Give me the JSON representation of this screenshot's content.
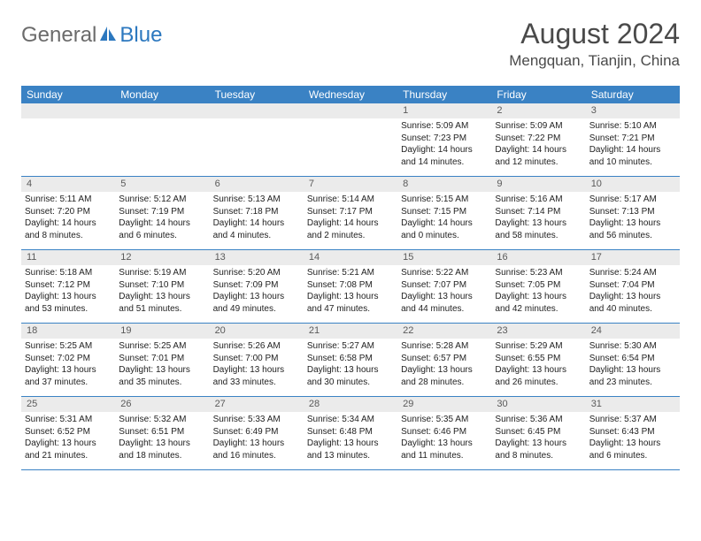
{
  "logo": {
    "general": "General",
    "blue": "Blue"
  },
  "title": "August 2024",
  "location": "Mengquan, Tianjin, China",
  "colors": {
    "header_bg": "#3a82c4",
    "daynum_bg": "#ebebeb",
    "border": "#3a82c4",
    "logo_gray": "#6b6b6b",
    "logo_blue": "#2c78bf",
    "title_gray": "#4a4a4a"
  },
  "dayNames": [
    "Sunday",
    "Monday",
    "Tuesday",
    "Wednesday",
    "Thursday",
    "Friday",
    "Saturday"
  ],
  "layout": {
    "weeks": 5,
    "firstDayOffset": 4,
    "daysInMonth": 31,
    "cell_fontsize": 10,
    "header_fontsize": 12
  },
  "days": {
    "1": {
      "sunrise": "5:09 AM",
      "sunset": "7:23 PM",
      "daylight": "14 hours and 14 minutes."
    },
    "2": {
      "sunrise": "5:09 AM",
      "sunset": "7:22 PM",
      "daylight": "14 hours and 12 minutes."
    },
    "3": {
      "sunrise": "5:10 AM",
      "sunset": "7:21 PM",
      "daylight": "14 hours and 10 minutes."
    },
    "4": {
      "sunrise": "5:11 AM",
      "sunset": "7:20 PM",
      "daylight": "14 hours and 8 minutes."
    },
    "5": {
      "sunrise": "5:12 AM",
      "sunset": "7:19 PM",
      "daylight": "14 hours and 6 minutes."
    },
    "6": {
      "sunrise": "5:13 AM",
      "sunset": "7:18 PM",
      "daylight": "14 hours and 4 minutes."
    },
    "7": {
      "sunrise": "5:14 AM",
      "sunset": "7:17 PM",
      "daylight": "14 hours and 2 minutes."
    },
    "8": {
      "sunrise": "5:15 AM",
      "sunset": "7:15 PM",
      "daylight": "14 hours and 0 minutes."
    },
    "9": {
      "sunrise": "5:16 AM",
      "sunset": "7:14 PM",
      "daylight": "13 hours and 58 minutes."
    },
    "10": {
      "sunrise": "5:17 AM",
      "sunset": "7:13 PM",
      "daylight": "13 hours and 56 minutes."
    },
    "11": {
      "sunrise": "5:18 AM",
      "sunset": "7:12 PM",
      "daylight": "13 hours and 53 minutes."
    },
    "12": {
      "sunrise": "5:19 AM",
      "sunset": "7:10 PM",
      "daylight": "13 hours and 51 minutes."
    },
    "13": {
      "sunrise": "5:20 AM",
      "sunset": "7:09 PM",
      "daylight": "13 hours and 49 minutes."
    },
    "14": {
      "sunrise": "5:21 AM",
      "sunset": "7:08 PM",
      "daylight": "13 hours and 47 minutes."
    },
    "15": {
      "sunrise": "5:22 AM",
      "sunset": "7:07 PM",
      "daylight": "13 hours and 44 minutes."
    },
    "16": {
      "sunrise": "5:23 AM",
      "sunset": "7:05 PM",
      "daylight": "13 hours and 42 minutes."
    },
    "17": {
      "sunrise": "5:24 AM",
      "sunset": "7:04 PM",
      "daylight": "13 hours and 40 minutes."
    },
    "18": {
      "sunrise": "5:25 AM",
      "sunset": "7:02 PM",
      "daylight": "13 hours and 37 minutes."
    },
    "19": {
      "sunrise": "5:25 AM",
      "sunset": "7:01 PM",
      "daylight": "13 hours and 35 minutes."
    },
    "20": {
      "sunrise": "5:26 AM",
      "sunset": "7:00 PM",
      "daylight": "13 hours and 33 minutes."
    },
    "21": {
      "sunrise": "5:27 AM",
      "sunset": "6:58 PM",
      "daylight": "13 hours and 30 minutes."
    },
    "22": {
      "sunrise": "5:28 AM",
      "sunset": "6:57 PM",
      "daylight": "13 hours and 28 minutes."
    },
    "23": {
      "sunrise": "5:29 AM",
      "sunset": "6:55 PM",
      "daylight": "13 hours and 26 minutes."
    },
    "24": {
      "sunrise": "5:30 AM",
      "sunset": "6:54 PM",
      "daylight": "13 hours and 23 minutes."
    },
    "25": {
      "sunrise": "5:31 AM",
      "sunset": "6:52 PM",
      "daylight": "13 hours and 21 minutes."
    },
    "26": {
      "sunrise": "5:32 AM",
      "sunset": "6:51 PM",
      "daylight": "13 hours and 18 minutes."
    },
    "27": {
      "sunrise": "5:33 AM",
      "sunset": "6:49 PM",
      "daylight": "13 hours and 16 minutes."
    },
    "28": {
      "sunrise": "5:34 AM",
      "sunset": "6:48 PM",
      "daylight": "13 hours and 13 minutes."
    },
    "29": {
      "sunrise": "5:35 AM",
      "sunset": "6:46 PM",
      "daylight": "13 hours and 11 minutes."
    },
    "30": {
      "sunrise": "5:36 AM",
      "sunset": "6:45 PM",
      "daylight": "13 hours and 8 minutes."
    },
    "31": {
      "sunrise": "5:37 AM",
      "sunset": "6:43 PM",
      "daylight": "13 hours and 6 minutes."
    }
  },
  "labels": {
    "sunrise": "Sunrise:",
    "sunset": "Sunset:",
    "daylight": "Daylight:"
  }
}
